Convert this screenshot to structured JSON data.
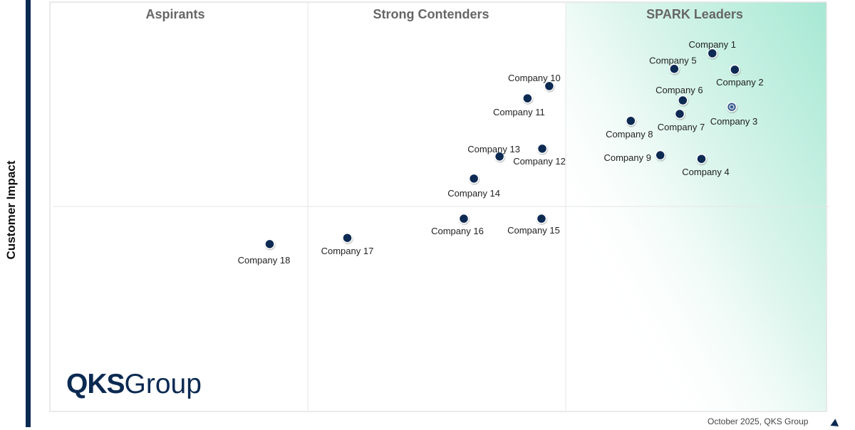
{
  "chart_data": {
    "type": "scatter",
    "title": "",
    "xlabel": "",
    "ylabel": "Customer Impact",
    "xlim": [
      0,
      100
    ],
    "ylim": [
      0,
      100
    ],
    "grid": false,
    "quadrants": [
      "Aspirants",
      "Strong Contenders",
      "SPARK Leaders"
    ],
    "colors": {
      "marker": "#0b2a52",
      "highlight": "#3d5f8f",
      "leader_gradient": "#a6e8d3",
      "axis_bar": "#0b2a52"
    },
    "points": [
      {
        "label": "Company 1",
        "x": 85.3,
        "y": 87.5
      },
      {
        "label": "Company 2",
        "x": 88.2,
        "y": 83.5
      },
      {
        "label": "Company 3",
        "x": 87.8,
        "y": 74.4,
        "highlighted": true
      },
      {
        "label": "Company 4",
        "x": 83.9,
        "y": 61.7
      },
      {
        "label": "Company 5",
        "x": 80.4,
        "y": 83.7
      },
      {
        "label": "Company 6",
        "x": 81.5,
        "y": 76.0
      },
      {
        "label": "Company 7",
        "x": 81.1,
        "y": 72.7
      },
      {
        "label": "Company 8",
        "x": 74.8,
        "y": 71.0
      },
      {
        "label": "Company 9",
        "x": 78.6,
        "y": 62.6
      },
      {
        "label": "Company 10",
        "x": 64.3,
        "y": 79.5
      },
      {
        "label": "Company 11",
        "x": 61.5,
        "y": 76.5
      },
      {
        "label": "Company 12",
        "x": 63.4,
        "y": 64.2
      },
      {
        "label": "Company 13",
        "x": 57.9,
        "y": 62.3
      },
      {
        "label": "Company 14",
        "x": 54.6,
        "y": 56.9
      },
      {
        "label": "Company 15",
        "x": 63.3,
        "y": 47.1
      },
      {
        "label": "Company 16",
        "x": 53.3,
        "y": 47.1
      },
      {
        "label": "Company 17",
        "x": 38.3,
        "y": 42.4
      },
      {
        "label": "Company 18",
        "x": 28.3,
        "y": 40.9
      }
    ]
  },
  "logo": {
    "bold": "QKS",
    "light": "Group"
  },
  "footer": "October 2025, QKS Group"
}
